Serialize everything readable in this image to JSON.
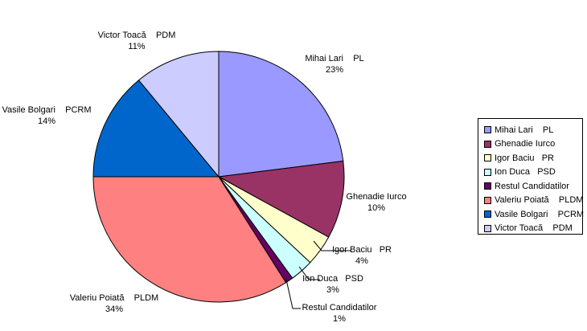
{
  "chart_data": {
    "type": "pie",
    "title": "",
    "slices": [
      {
        "label": "Mihai Lari    PL",
        "percent_label": "23%",
        "value": 23,
        "color": "#9999FF"
      },
      {
        "label": "Ghenadie Iurco",
        "percent_label": "10%",
        "value": 10,
        "color": "#993366"
      },
      {
        "label": "Igor Baciu   PR",
        "percent_label": "4%",
        "value": 4,
        "color": "#FFFFCC"
      },
      {
        "label": "Ion Duca   PSD",
        "percent_label": "3%",
        "value": 3,
        "color": "#CCFFFF"
      },
      {
        "label": "Restul Candidatilor",
        "percent_label": "1%",
        "value": 1,
        "color": "#660066"
      },
      {
        "label": "Valeriu Poiată    PLDM",
        "percent_label": "34%",
        "value": 34,
        "color": "#FF8080"
      },
      {
        "label": "Vasile Bolgari    PCRM",
        "percent_label": "14%",
        "value": 14,
        "color": "#0066CC"
      },
      {
        "label": "Victor Toacă    PDM",
        "percent_label": "11%",
        "value": 11,
        "color": "#CCCCFF"
      }
    ],
    "legend": {
      "placement": "right",
      "entries": [
        "Mihai Lari    PL",
        "Ghenadie Iurco",
        "Igor Baciu   PR",
        "Ion Duca   PSD",
        "Restul Candidatilor",
        "Valeriu Poiată    PLDM",
        "Vasile Bolgari    PCRM",
        "Victor Toacă    PDM"
      ]
    }
  }
}
